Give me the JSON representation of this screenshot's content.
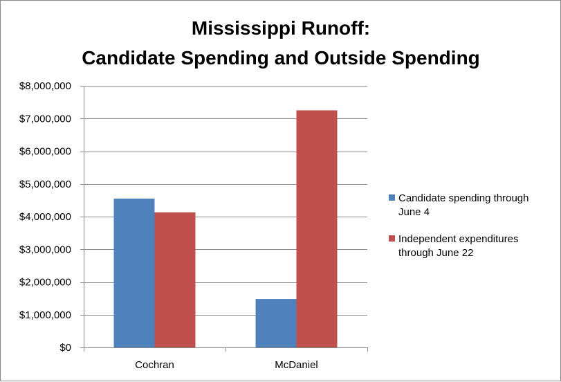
{
  "chart_data": {
    "type": "bar",
    "title": [
      "Mississippi Runoff:",
      "Candidate Spending and Outside Spending"
    ],
    "categories": [
      "Cochran",
      "McDaniel"
    ],
    "series": [
      {
        "name": "Candidate spending through June 4",
        "name_lines": [
          "Candidate spending through",
          "June 4"
        ],
        "color": "#4f81bd",
        "values": [
          4550000,
          1480000
        ]
      },
      {
        "name": "Independent expenditures through June 22",
        "name_lines": [
          "Independent expenditures",
          "through June 22"
        ],
        "color": "#c0504d",
        "values": [
          4130000,
          7250000
        ]
      }
    ],
    "ylim": [
      0,
      8000000
    ],
    "yticks": [
      0,
      1000000,
      2000000,
      3000000,
      4000000,
      5000000,
      6000000,
      7000000,
      8000000
    ],
    "ytick_labels": [
      "$0",
      "$1,000,000",
      "$2,000,000",
      "$3,000,000",
      "$4,000,000",
      "$5,000,000",
      "$6,000,000",
      "$7,000,000",
      "$8,000,000"
    ],
    "xlabel": "",
    "ylabel": "",
    "grid": true,
    "legend_position": "right"
  }
}
